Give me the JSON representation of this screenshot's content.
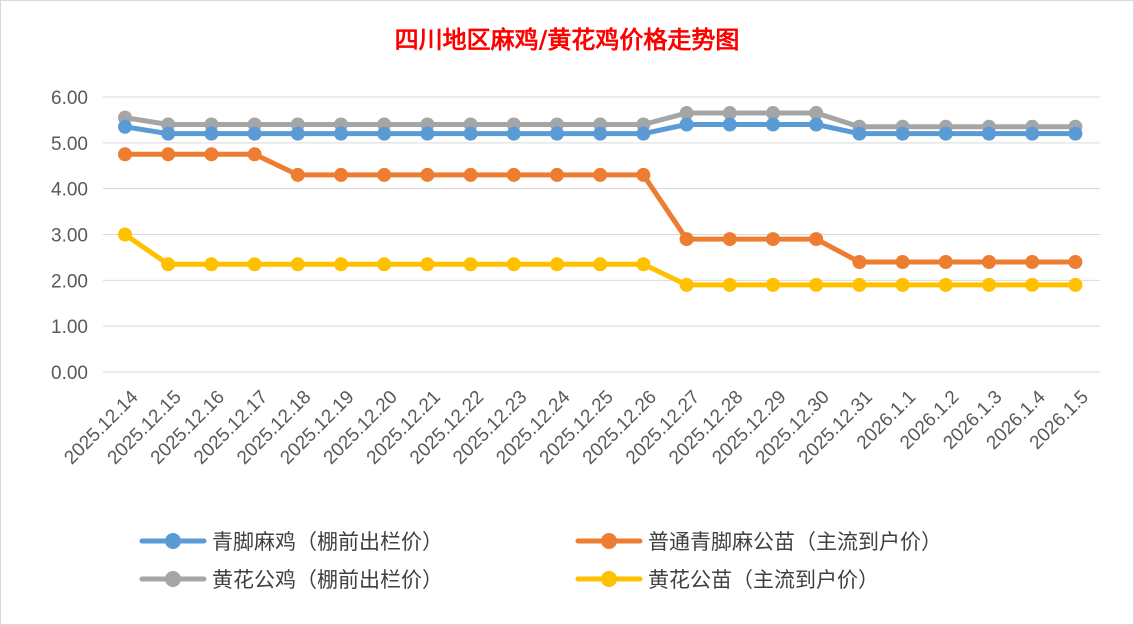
{
  "chart_data": {
    "type": "line",
    "title": "四川地区麻鸡/黄花鸡价格走势图",
    "xlabel": "",
    "ylabel": "",
    "ylim": [
      0,
      6
    ],
    "y_ticks": [
      "0.00",
      "1.00",
      "2.00",
      "3.00",
      "4.00",
      "5.00",
      "6.00"
    ],
    "grid": true,
    "legend_position": "bottom",
    "categories": [
      "2025.12.14",
      "2025.12.15",
      "2025.12.16",
      "2025.12.17",
      "2025.12.18",
      "2025.12.19",
      "2025.12.20",
      "2025.12.21",
      "2025.12.22",
      "2025.12.23",
      "2025.12.24",
      "2025.12.25",
      "2025.12.26",
      "2025.12.27",
      "2025.12.28",
      "2025.12.29",
      "2025.12.30",
      "2025.12.31",
      "2026.1.1",
      "2026.1.2",
      "2026.1.3",
      "2026.1.4",
      "2026.1.5"
    ],
    "series": [
      {
        "name": "黄花公鸡（棚前出栏价）",
        "color": "#a5a5a5",
        "values": [
          5.55,
          5.4,
          5.4,
          5.4,
          5.4,
          5.4,
          5.4,
          5.4,
          5.4,
          5.4,
          5.4,
          5.4,
          5.4,
          5.65,
          5.65,
          5.65,
          5.65,
          5.35,
          5.35,
          5.35,
          5.35,
          5.35,
          5.35
        ]
      },
      {
        "name": "青脚麻鸡（棚前出栏价）",
        "color": "#5b9bd5",
        "values": [
          5.35,
          5.2,
          5.2,
          5.2,
          5.2,
          5.2,
          5.2,
          5.2,
          5.2,
          5.2,
          5.2,
          5.2,
          5.2,
          5.4,
          5.4,
          5.4,
          5.4,
          5.2,
          5.2,
          5.2,
          5.2,
          5.2,
          5.2
        ]
      },
      {
        "name": "普通青脚麻公苗（主流到户价）",
        "color": "#ed7d31",
        "values": [
          4.75,
          4.75,
          4.75,
          4.75,
          4.3,
          4.3,
          4.3,
          4.3,
          4.3,
          4.3,
          4.3,
          4.3,
          4.3,
          2.9,
          2.9,
          2.9,
          2.9,
          2.4,
          2.4,
          2.4,
          2.4,
          2.4,
          2.4
        ]
      },
      {
        "name": "黄花公苗（主流到户价）",
        "color": "#ffc000",
        "values": [
          3.0,
          2.35,
          2.35,
          2.35,
          2.35,
          2.35,
          2.35,
          2.35,
          2.35,
          2.35,
          2.35,
          2.35,
          2.35,
          1.9,
          1.9,
          1.9,
          1.9,
          1.9,
          1.9,
          1.9,
          1.9,
          1.9,
          1.9
        ]
      }
    ],
    "legend": [
      {
        "label": "青脚麻鸡（棚前出栏价）",
        "color": "#5b9bd5"
      },
      {
        "label": "普通青脚麻公苗（主流到户价）",
        "color": "#ed7d31"
      },
      {
        "label": "黄花公鸡（棚前出栏价）",
        "color": "#a5a5a5"
      },
      {
        "label": "黄花公苗（主流到户价）",
        "color": "#ffc000"
      }
    ]
  }
}
